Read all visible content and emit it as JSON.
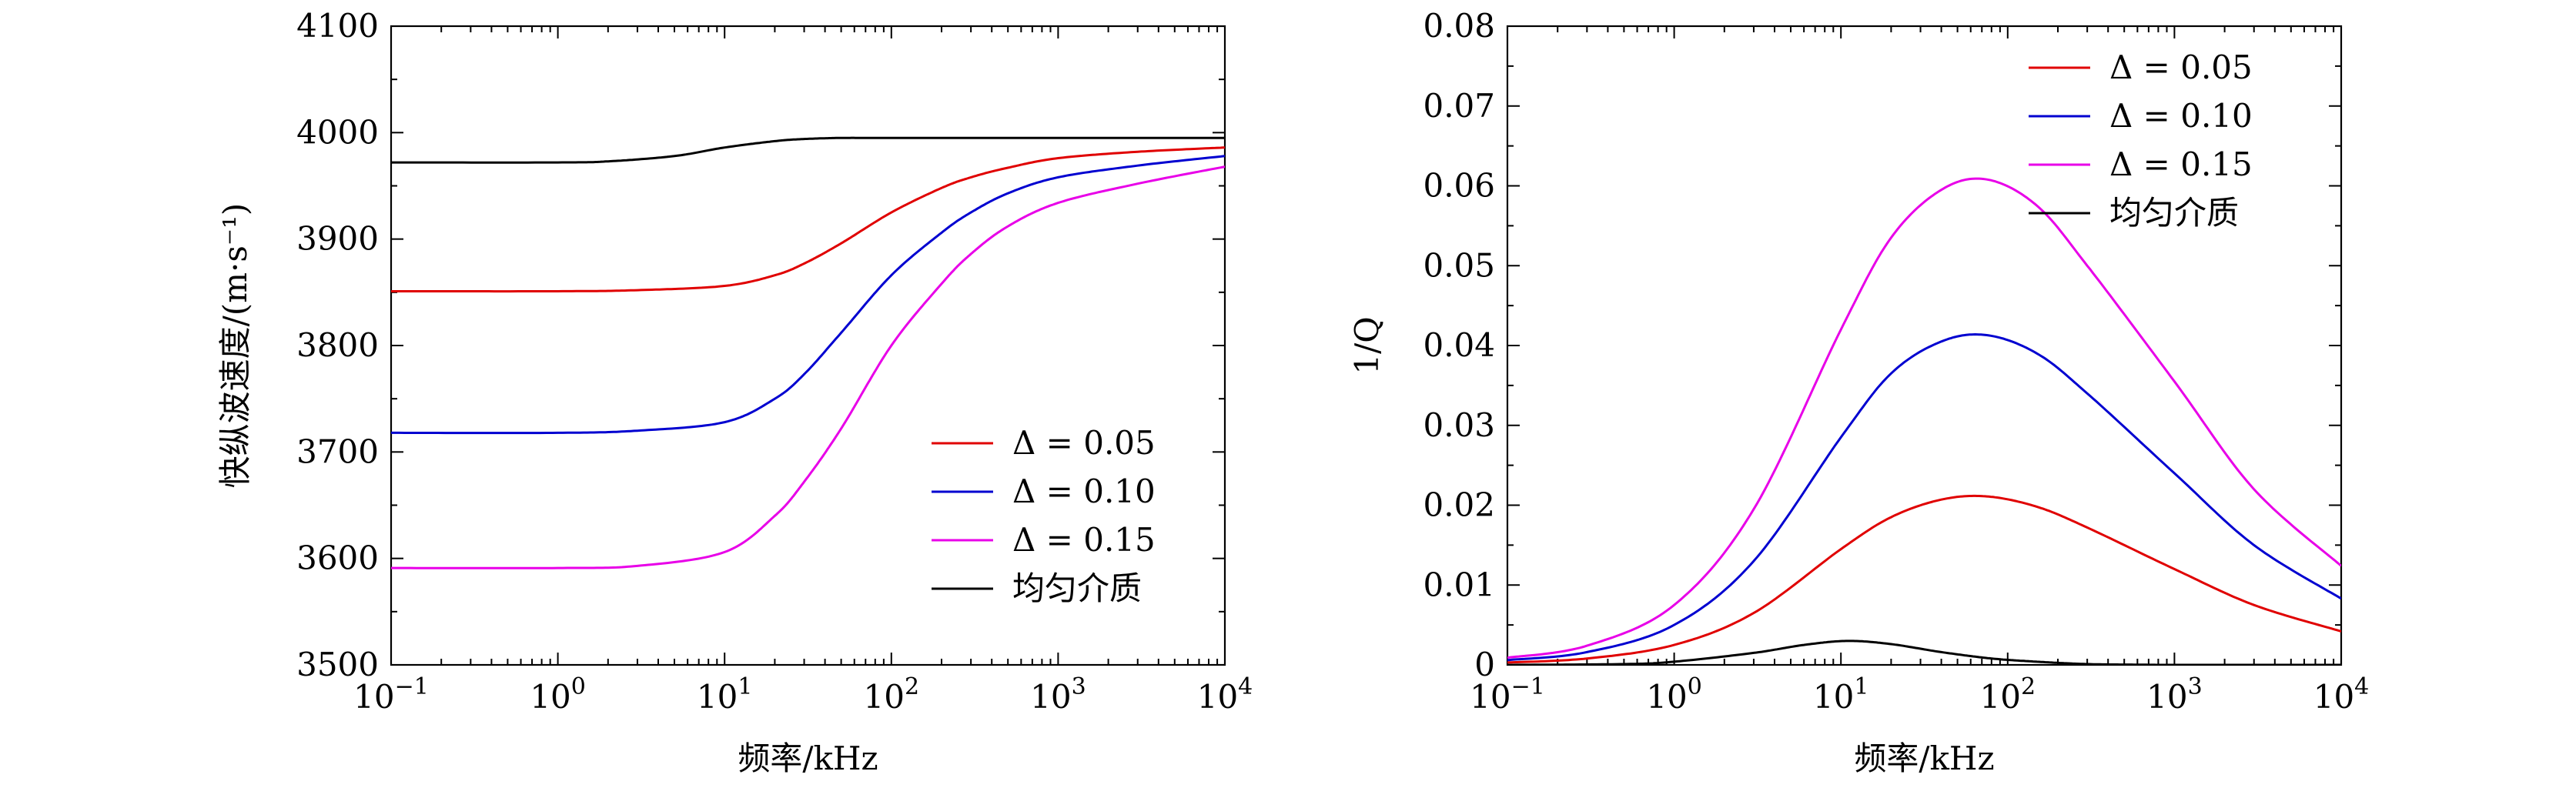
{
  "chart_data": [
    {
      "type": "line",
      "xscale": "log",
      "x_ticks": [
        0.1,
        1,
        10,
        100,
        1000,
        10000
      ],
      "x_tick_labels": [
        "10^-1",
        "10^0",
        "10^1",
        "10^2",
        "10^3",
        "10^4"
      ],
      "xlim": [
        0.1,
        10000
      ],
      "ylim": [
        3500,
        4100
      ],
      "y_ticks": [
        3500,
        3600,
        3700,
        3800,
        3900,
        4000,
        4100
      ],
      "y_tick_labels": [
        "3500",
        "3600",
        "3700",
        "3800",
        "3900",
        "4000",
        "4100"
      ],
      "xlabel": "频率/kHz",
      "ylabel": "快纵波速度/(m·s⁻¹)",
      "legend_position": "bottom-right",
      "series": [
        {
          "name": "Δ = 0.05",
          "color": "#e00000",
          "x": [
            0.1,
            1,
            3,
            10,
            20,
            30,
            50,
            100,
            200,
            300,
            500,
            1000,
            3000,
            10000
          ],
          "y": [
            3851,
            3851,
            3852,
            3856,
            3866,
            3877,
            3896,
            3925,
            3948,
            3958,
            3967,
            3976,
            3982,
            3986
          ]
        },
        {
          "name": "Δ = 0.10",
          "color": "#0000d0",
          "x": [
            0.1,
            1,
            3,
            10,
            20,
            30,
            50,
            100,
            200,
            300,
            500,
            1000,
            3000,
            10000
          ],
          "y": [
            3718,
            3718,
            3720,
            3728,
            3750,
            3773,
            3812,
            3866,
            3906,
            3925,
            3943,
            3958,
            3969,
            3978
          ]
        },
        {
          "name": "Δ = 0.15",
          "color": "#e800e8",
          "x": [
            0.1,
            1,
            3,
            10,
            20,
            30,
            50,
            100,
            200,
            300,
            500,
            1000,
            3000,
            10000
          ],
          "y": [
            3591,
            3591,
            3593,
            3606,
            3640,
            3672,
            3722,
            3800,
            3858,
            3886,
            3912,
            3934,
            3952,
            3968
          ]
        },
        {
          "name": "均匀介质",
          "color": "#000000",
          "x": [
            0.1,
            1,
            2,
            5,
            10,
            20,
            30,
            50,
            100,
            1000,
            10000
          ],
          "y": [
            3972,
            3972,
            3973,
            3978,
            3986,
            3992,
            3994,
            3995,
            3995,
            3995,
            3995
          ]
        }
      ]
    },
    {
      "type": "line",
      "xscale": "log",
      "x_ticks": [
        0.1,
        1,
        10,
        100,
        1000,
        10000
      ],
      "x_tick_labels": [
        "10^-1",
        "10^0",
        "10^1",
        "10^2",
        "10^3",
        "10^4"
      ],
      "xlim": [
        0.1,
        10000
      ],
      "ylim": [
        0,
        0.08
      ],
      "y_ticks": [
        0,
        0.01,
        0.02,
        0.03,
        0.04,
        0.05,
        0.06,
        0.07,
        0.08
      ],
      "y_tick_labels": [
        "0",
        "0.01",
        "0.02",
        "0.03",
        "0.04",
        "0.05",
        "0.06",
        "0.07",
        "0.08"
      ],
      "xlabel": "频率/kHz",
      "ylabel": "1/Q",
      "legend_position": "top-right",
      "series": [
        {
          "name": "Δ = 0.05",
          "color": "#e00000",
          "x": [
            0.1,
            0.3,
            1,
            3,
            10,
            20,
            40,
            75,
            150,
            300,
            1000,
            3000,
            10000
          ],
          "y": [
            0.0003,
            0.0008,
            0.0025,
            0.0065,
            0.0145,
            0.0185,
            0.0207,
            0.0211,
            0.0198,
            0.0172,
            0.012,
            0.0075,
            0.0042
          ]
        },
        {
          "name": "Δ = 0.10",
          "color": "#0000d0",
          "x": [
            0.1,
            0.3,
            1,
            3,
            10,
            20,
            40,
            75,
            150,
            300,
            1000,
            3000,
            10000
          ],
          "y": [
            0.0006,
            0.0016,
            0.005,
            0.013,
            0.0285,
            0.0365,
            0.0405,
            0.0413,
            0.039,
            0.034,
            0.024,
            0.015,
            0.0083
          ]
        },
        {
          "name": "Δ = 0.15",
          "color": "#e800e8",
          "x": [
            0.1,
            0.3,
            1,
            3,
            10,
            20,
            40,
            75,
            150,
            300,
            1000,
            3000,
            10000
          ],
          "y": [
            0.0009,
            0.0024,
            0.0075,
            0.0195,
            0.042,
            0.0535,
            0.0595,
            0.0608,
            0.0575,
            0.05,
            0.0355,
            0.022,
            0.0124
          ]
        },
        {
          "name": "均匀介质",
          "color": "#000000",
          "x": [
            0.1,
            0.5,
            1,
            3,
            6,
            11,
            20,
            40,
            80,
            150,
            300,
            600,
            1000,
            10000
          ],
          "y": [
            0,
            0.0001,
            0.0004,
            0.0015,
            0.0025,
            0.003,
            0.0026,
            0.0016,
            0.0008,
            0.0004,
            0.0001,
            3e-05,
            0,
            0
          ]
        }
      ]
    }
  ]
}
